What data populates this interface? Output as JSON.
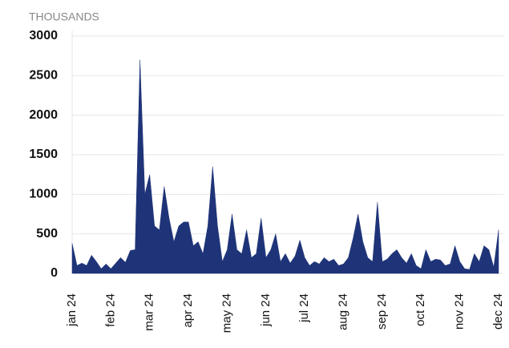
{
  "chart_data": {
    "type": "area",
    "axis_label": "THOUSANDS",
    "categories": [
      "jan 24",
      null,
      null,
      null,
      null,
      null,
      null,
      null,
      "feb 24",
      null,
      null,
      null,
      null,
      null,
      null,
      null,
      "mar 24",
      null,
      null,
      null,
      null,
      null,
      null,
      null,
      "apr 24",
      null,
      null,
      null,
      null,
      null,
      null,
      null,
      "may 24",
      null,
      null,
      null,
      null,
      null,
      null,
      null,
      "jun 24",
      null,
      null,
      null,
      null,
      null,
      null,
      null,
      "jul 24",
      null,
      null,
      null,
      null,
      null,
      null,
      null,
      "aug 24",
      null,
      null,
      null,
      null,
      null,
      null,
      null,
      "sep 24",
      null,
      null,
      null,
      null,
      null,
      null,
      null,
      "oct 24",
      null,
      null,
      null,
      null,
      null,
      null,
      null,
      "nov 24",
      null,
      null,
      null,
      null,
      null,
      null,
      null,
      "dec 24"
    ],
    "values": [
      380,
      100,
      130,
      100,
      230,
      150,
      60,
      120,
      60,
      130,
      200,
      140,
      290,
      300,
      2700,
      1000,
      1250,
      600,
      550,
      1100,
      700,
      400,
      600,
      650,
      650,
      350,
      400,
      250,
      600,
      1350,
      600,
      150,
      300,
      750,
      300,
      250,
      550,
      200,
      250,
      700,
      200,
      300,
      500,
      150,
      250,
      130,
      220,
      420,
      200,
      100,
      150,
      120,
      200,
      150,
      180,
      100,
      120,
      200,
      450,
      750,
      400,
      200,
      150,
      900,
      150,
      180,
      250,
      300,
      200,
      130,
      250,
      100,
      60,
      300,
      150,
      180,
      170,
      100,
      120,
      350,
      150,
      60,
      50,
      250,
      150,
      350,
      300,
      80,
      550
    ],
    "color": "#1f3478",
    "ylim": [
      0,
      3000
    ],
    "yticks": [
      0,
      500,
      1000,
      1500,
      2000,
      2500,
      3000
    ],
    "grid": true
  }
}
